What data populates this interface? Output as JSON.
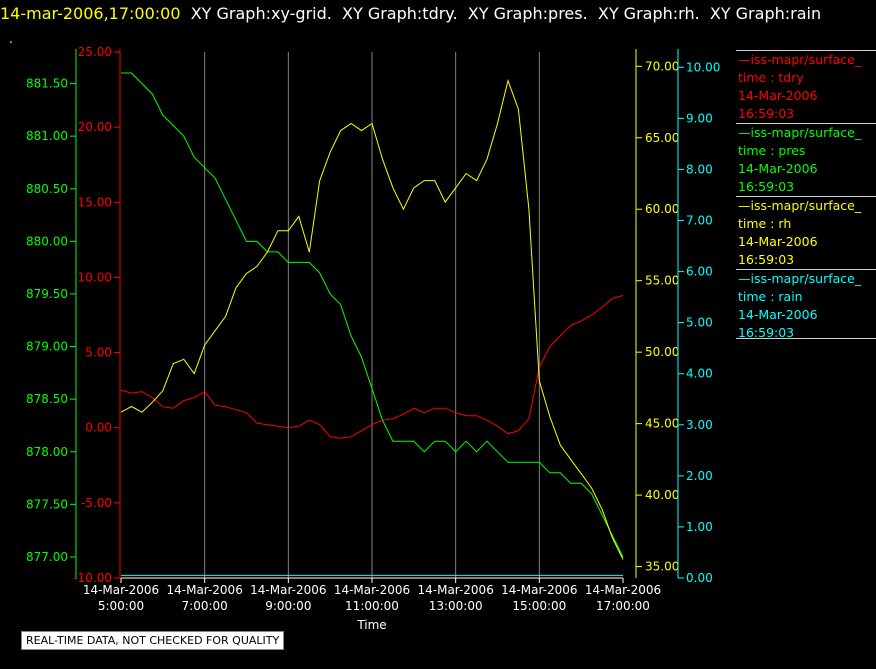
{
  "title": {
    "timestamp": "14-mar-2006,17:00:00",
    "rest": "  XY Graph:xy-grid.  XY Graph:tdry.  XY Graph:pres.  XY Graph:rh.  XY Graph:rain"
  },
  "marker_text": ".",
  "footer_note": "REAL-TIME DATA, NOT CHECKED FOR QUALITY",
  "colors": {
    "tdry": "#ff0000",
    "pres": "#00ff00",
    "rh": "#ffff00",
    "rain": "#00ffff",
    "grid": "#bbbbbb",
    "background": "#000000"
  },
  "legend": [
    {
      "series": "tdry",
      "lines": [
        "—iss-mapr/surface_",
        "time : tdry",
        "14-Mar-2006",
        "16:59:03"
      ]
    },
    {
      "series": "pres",
      "lines": [
        "—iss-mapr/surface_",
        "time : pres",
        "14-Mar-2006",
        "16:59:03"
      ]
    },
    {
      "series": "rh",
      "lines": [
        "—iss-mapr/surface_",
        "time : rh",
        "14-Mar-2006",
        "16:59:03"
      ]
    },
    {
      "series": "rain",
      "lines": [
        "—iss-mapr/surface_",
        "time : rain",
        "14-Mar-2006",
        "16:59:03"
      ]
    }
  ],
  "chart_data": {
    "type": "line",
    "title": "",
    "xlabel": "Time",
    "x_range": [
      "14-Mar-2006 5:00:00",
      "14-Mar-2006 17:00:00"
    ],
    "x_ticks": [
      {
        "date": "14-Mar-2006",
        "time": "5:00:00"
      },
      {
        "date": "14-Mar-2006",
        "time": "7:00:00"
      },
      {
        "date": "14-Mar-2006",
        "time": "9:00:00"
      },
      {
        "date": "14-Mar-2006",
        "time": "11:00:00"
      },
      {
        "date": "14-Mar-2006",
        "time": "13:00:00"
      },
      {
        "date": "14-Mar-2006",
        "time": "15:00:00"
      },
      {
        "date": "14-Mar-2006",
        "time": "17:00:00"
      }
    ],
    "x_hours": [
      "5:00",
      "5:15",
      "5:30",
      "5:45",
      "6:00",
      "6:15",
      "6:30",
      "6:45",
      "7:00",
      "7:15",
      "7:30",
      "7:45",
      "8:00",
      "8:15",
      "8:30",
      "8:45",
      "9:00",
      "9:15",
      "9:30",
      "9:45",
      "10:00",
      "10:15",
      "10:30",
      "10:45",
      "11:00",
      "11:15",
      "11:30",
      "11:45",
      "12:00",
      "12:15",
      "12:30",
      "12:45",
      "13:00",
      "13:15",
      "13:30",
      "13:45",
      "14:00",
      "14:15",
      "14:30",
      "14:45",
      "15:00",
      "15:15",
      "15:30",
      "15:45",
      "16:00",
      "16:15",
      "16:30",
      "16:45",
      "17:00"
    ],
    "grid": true,
    "axes": {
      "tdry": {
        "side": "left",
        "ylim": [
          -10,
          25
        ],
        "ticks": [
          "25.00",
          "20.00",
          "15.00",
          "10.00",
          "5.00",
          "0.00",
          "-5.00",
          "-10.00"
        ],
        "color": "#ff0000"
      },
      "pres": {
        "side": "left",
        "ylim": [
          876.8,
          881.8
        ],
        "ticks": [
          "881.50",
          "881.00",
          "880.50",
          "880.00",
          "879.50",
          "879.00",
          "878.50",
          "878.00",
          "877.50",
          "877.00"
        ],
        "color": "#00ff00"
      },
      "rh": {
        "side": "right",
        "ylim": [
          34.2,
          71.0
        ],
        "ticks": [
          "70.00",
          "65.00",
          "60.00",
          "55.00",
          "50.00",
          "45.00",
          "40.00",
          "35.00"
        ],
        "color": "#ffff00"
      },
      "rain": {
        "side": "right",
        "ylim": [
          0,
          10.3
        ],
        "ticks": [
          "10.00",
          "9.00",
          "8.00",
          "7.00",
          "6.00",
          "5.00",
          "4.00",
          "3.00",
          "2.00",
          "1.00",
          "0.00"
        ],
        "color": "#00ffff"
      }
    },
    "series": [
      {
        "key": "tdry",
        "values": [
          2.5,
          2.3,
          2.4,
          2.0,
          1.4,
          1.3,
          1.8,
          2.0,
          2.4,
          1.5,
          1.4,
          1.2,
          1.0,
          0.3,
          0.2,
          0.1,
          0.0,
          0.1,
          0.5,
          0.2,
          -0.6,
          -0.7,
          -0.6,
          -0.2,
          0.2,
          0.5,
          0.6,
          0.9,
          1.3,
          1.0,
          1.3,
          1.3,
          1.0,
          0.8,
          0.8,
          0.5,
          0.1,
          -0.4,
          -0.2,
          0.6,
          4.0,
          5.4,
          6.1,
          6.8,
          7.1,
          7.5,
          8.0,
          8.6,
          8.8
        ]
      },
      {
        "key": "pres",
        "values": [
          881.6,
          881.6,
          881.5,
          881.4,
          881.2,
          881.1,
          881.0,
          880.8,
          880.7,
          880.6,
          880.4,
          880.2,
          880.0,
          880.0,
          879.9,
          879.9,
          879.8,
          879.8,
          879.8,
          879.7,
          879.5,
          879.4,
          879.1,
          878.9,
          878.6,
          878.3,
          878.1,
          878.1,
          878.1,
          878.0,
          878.1,
          878.1,
          878.0,
          878.1,
          878.0,
          878.1,
          878.0,
          877.9,
          877.9,
          877.9,
          877.9,
          877.8,
          877.8,
          877.7,
          877.7,
          877.6,
          877.4,
          877.2,
          877.0
        ]
      },
      {
        "key": "rh",
        "values": [
          45.8,
          46.2,
          45.8,
          46.5,
          47.3,
          49.2,
          49.5,
          48.5,
          50.5,
          51.5,
          52.5,
          54.5,
          55.5,
          56.0,
          57.0,
          58.5,
          58.5,
          59.5,
          57.0,
          62.0,
          64.0,
          65.5,
          66.0,
          65.5,
          66.0,
          63.5,
          61.5,
          60.0,
          61.5,
          62.0,
          62.0,
          60.5,
          61.5,
          62.5,
          62.0,
          63.5,
          66.0,
          69.0,
          67.0,
          60.0,
          48.0,
          45.5,
          43.5,
          42.5,
          41.5,
          40.5,
          39.0,
          37.0,
          35.5
        ]
      },
      {
        "key": "rain",
        "values": [
          0.05,
          0.05,
          0.05,
          0.05,
          0.05,
          0.05,
          0.05,
          0.05,
          0.05,
          0.05,
          0.05,
          0.05,
          0.05,
          0.05,
          0.05,
          0.05,
          0.05,
          0.05,
          0.05,
          0.05,
          0.05,
          0.05,
          0.05,
          0.05,
          0.05,
          0.05,
          0.05,
          0.05,
          0.05,
          0.05,
          0.05,
          0.05,
          0.05,
          0.05,
          0.05,
          0.05,
          0.05,
          0.05,
          0.05,
          0.05,
          0.05,
          0.05,
          0.05,
          0.05,
          0.05,
          0.05,
          0.05,
          0.05,
          0.05
        ]
      }
    ]
  }
}
